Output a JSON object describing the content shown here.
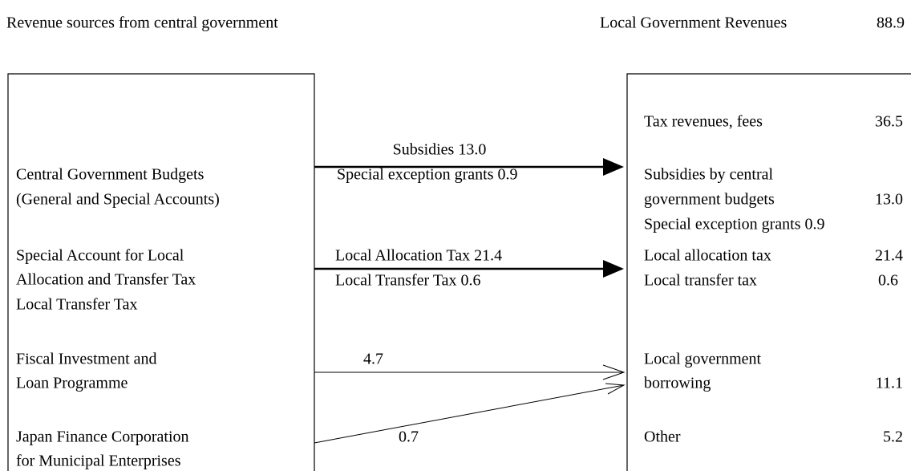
{
  "header": {
    "left_title": "Revenue sources from central government",
    "right_title": "Local Government Revenues",
    "total": "88.9"
  },
  "sources": [
    {
      "lines": [
        "Central Government Budgets",
        "(General and Special Accounts)"
      ]
    },
    {
      "lines": [
        "Special Account for Local",
        "Allocation and Transfer Tax",
        "Local Transfer Tax"
      ]
    },
    {
      "lines": [
        "Fiscal Investment and",
        "Loan Programme"
      ]
    },
    {
      "lines": [
        "Japan Finance Corporation",
        "for Municipal Enterprises"
      ]
    }
  ],
  "flows": [
    {
      "labels": [
        "Subsidies 13.0",
        "Special exception grants 0.9"
      ]
    },
    {
      "labels": [
        "Local Allocation Tax 21.4",
        "Local Transfer Tax 0.6"
      ]
    },
    {
      "labels": [
        "4.7"
      ]
    },
    {
      "labels": [
        "0.7"
      ]
    }
  ],
  "revenues": [
    {
      "lines": [
        "Tax revenues, fees"
      ],
      "value": "36.5"
    },
    {
      "lines": [
        "Subsidies by central",
        "government budgets",
        "Special exception grants 0.9"
      ],
      "value": "13.0"
    },
    {
      "lines": [
        "Local allocation tax",
        "Local transfer tax"
      ],
      "values": [
        "21.4",
        "0.6"
      ]
    },
    {
      "lines": [
        "Local government",
        "borrowing"
      ],
      "value": "11.1"
    },
    {
      "lines": [
        "Other"
      ],
      "value": "5.2"
    }
  ]
}
